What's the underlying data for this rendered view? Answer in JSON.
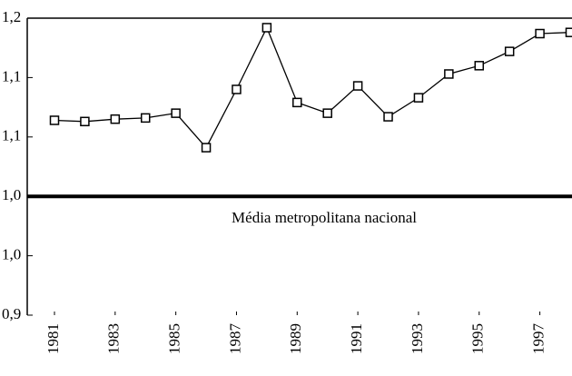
{
  "chart_data": {
    "type": "line",
    "x": [
      1981,
      1982,
      1983,
      1984,
      1985,
      1986,
      1987,
      1988,
      1989,
      1990,
      1991,
      1992,
      1993,
      1994,
      1995,
      1996,
      1997,
      1998
    ],
    "series": [
      {
        "color": "#000000",
        "values": [
          1.064,
          1.063,
          1.065,
          1.066,
          1.07,
          1.041,
          1.09,
          1.142,
          1.079,
          1.07,
          1.093,
          1.067,
          1.083,
          1.103,
          1.11,
          1.122,
          1.137,
          1.138
        ]
      }
    ],
    "xlim": [
      1981,
      1998
    ],
    "xticks": [
      1981,
      1983,
      1985,
      1987,
      1989,
      1991,
      1993,
      1995,
      1997
    ],
    "ylim": [
      0.9,
      1.15
    ],
    "yticks": [
      {
        "value": 0.9,
        "label": "0,9"
      },
      {
        "value": 0.95,
        "label": "1,0"
      },
      {
        "value": 1.0,
        "label": "1,0"
      },
      {
        "value": 1.05,
        "label": "1,1"
      },
      {
        "value": 1.1,
        "label": "1,1"
      },
      {
        "value": 1.15,
        "label": "1,2"
      }
    ],
    "reference_line": {
      "value": 1.0,
      "label": "Média metropolitana nacional"
    }
  }
}
